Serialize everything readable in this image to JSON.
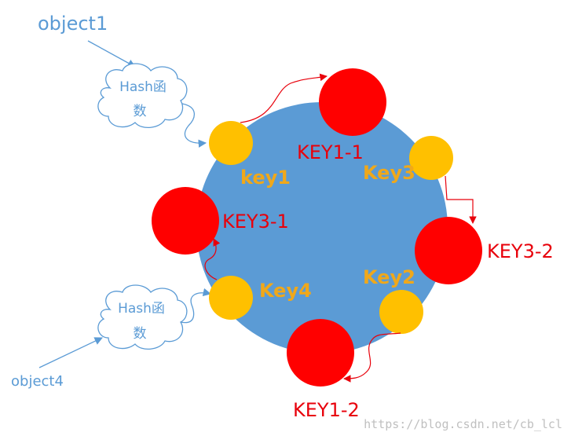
{
  "objects": {
    "object1": "object1",
    "object4": "object4"
  },
  "hash_label_line1": "Hash函",
  "hash_label_line2": "数",
  "keys": {
    "key1": "key1",
    "key2": "Key2",
    "key3": "Key3",
    "key4": "Key4"
  },
  "virtual_nodes": {
    "key1_1": "KEY1-1",
    "key1_2": "KEY1-2",
    "key3_1": "KEY3-1",
    "key3_2": "KEY3-2"
  },
  "watermark": "https://blog.csdn.net/cb_lcl",
  "colors": {
    "ring": "#5b9bd5",
    "key_node": "#ffc000",
    "virtual_node": "#ff0000",
    "object_text": "#5b9bd5",
    "key_text": "#f0a81a",
    "virtual_text": "#e8000b",
    "cloud_stroke": "#5b9bd5",
    "arrow_blue": "#5b9bd5",
    "arrow_red": "#e8000b",
    "watermark": "#c8c8c8"
  }
}
